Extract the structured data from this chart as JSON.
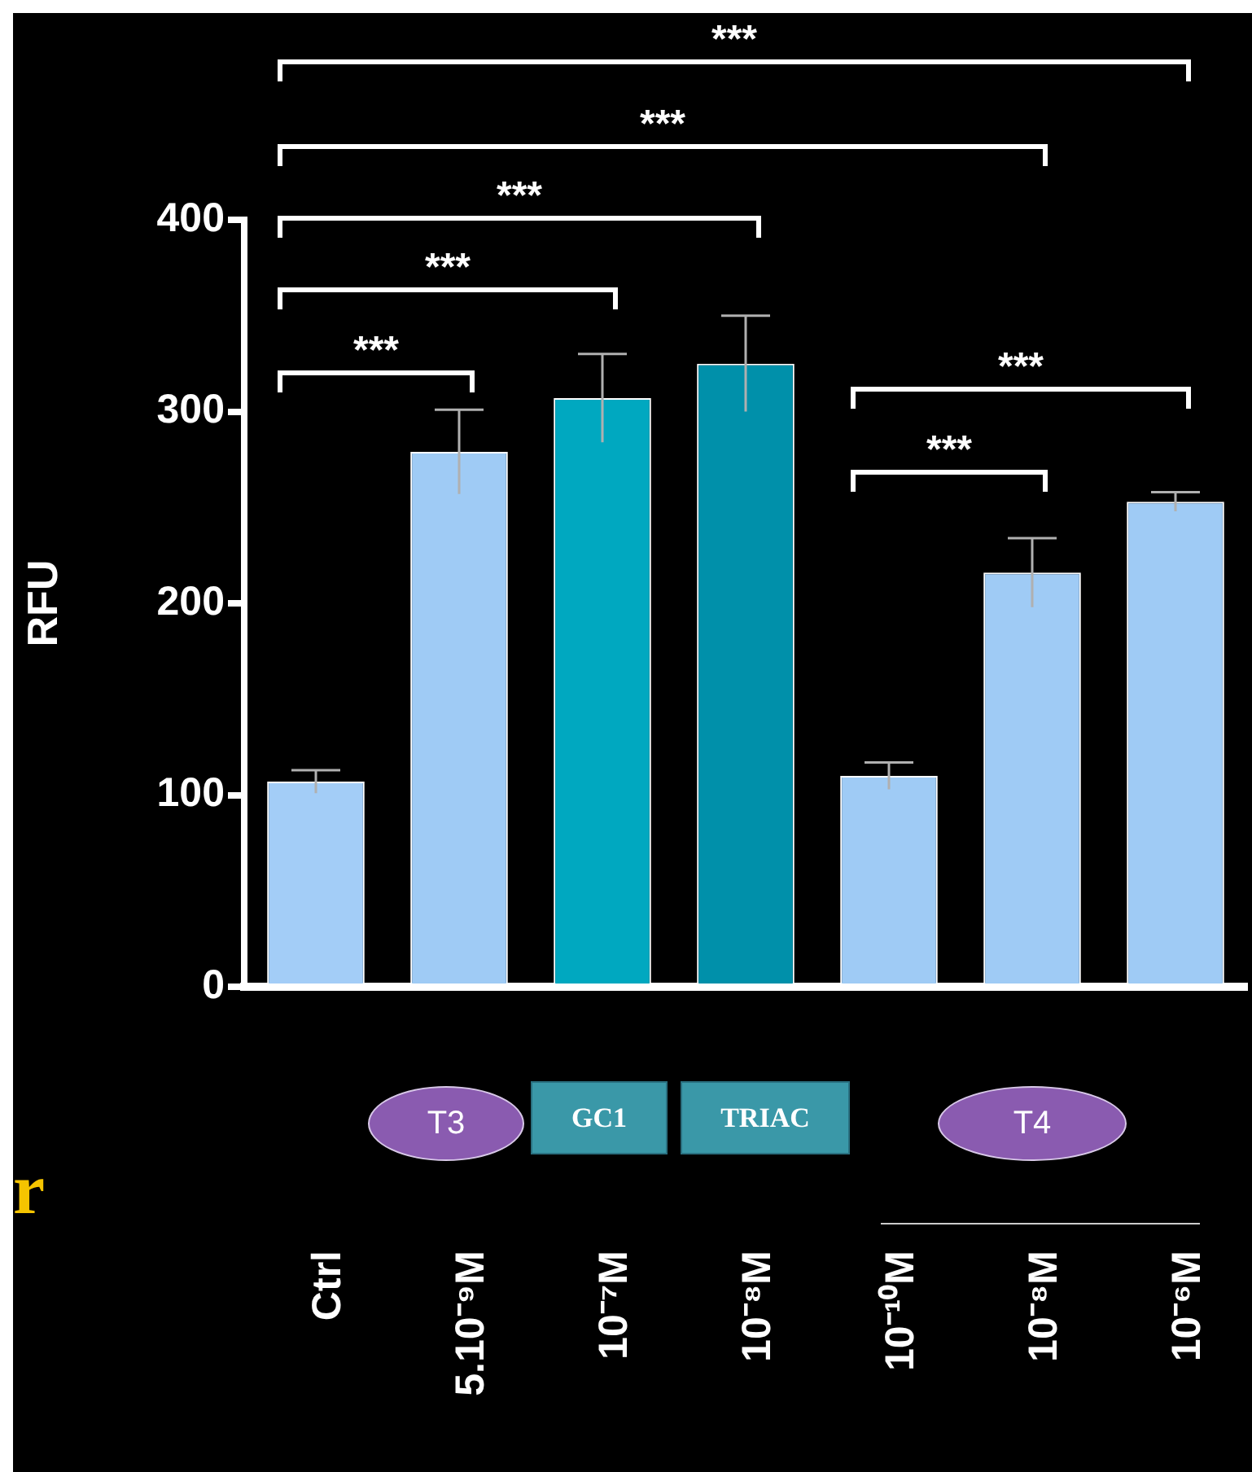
{
  "chart_data": {
    "type": "bar",
    "ylabel": "RFU",
    "categories": [
      "Ctrl",
      "5.10⁻⁹M",
      "10⁻⁷M",
      "10⁻⁸M",
      "10⁻¹⁰M",
      "10⁻⁸M",
      "10⁻⁶M"
    ],
    "values": [
      107,
      279,
      307,
      325,
      110,
      216,
      253
    ],
    "errors": [
      6,
      22,
      23,
      25,
      7,
      18,
      5
    ],
    "colors": [
      "#a3cdf7",
      "#9fcbf5",
      "#00a8c0",
      "#0090aa",
      "#9fcbf5",
      "#9fcbf5",
      "#9fcbf5"
    ],
    "ylim": [
      0,
      400
    ],
    "yticks": [
      0,
      100,
      200,
      300,
      400
    ],
    "annotations": [
      "***",
      "***",
      "***",
      "***",
      "***",
      "***",
      "***",
      "T3",
      "GC1",
      "TRIAC",
      "T4",
      "r"
    ]
  }
}
